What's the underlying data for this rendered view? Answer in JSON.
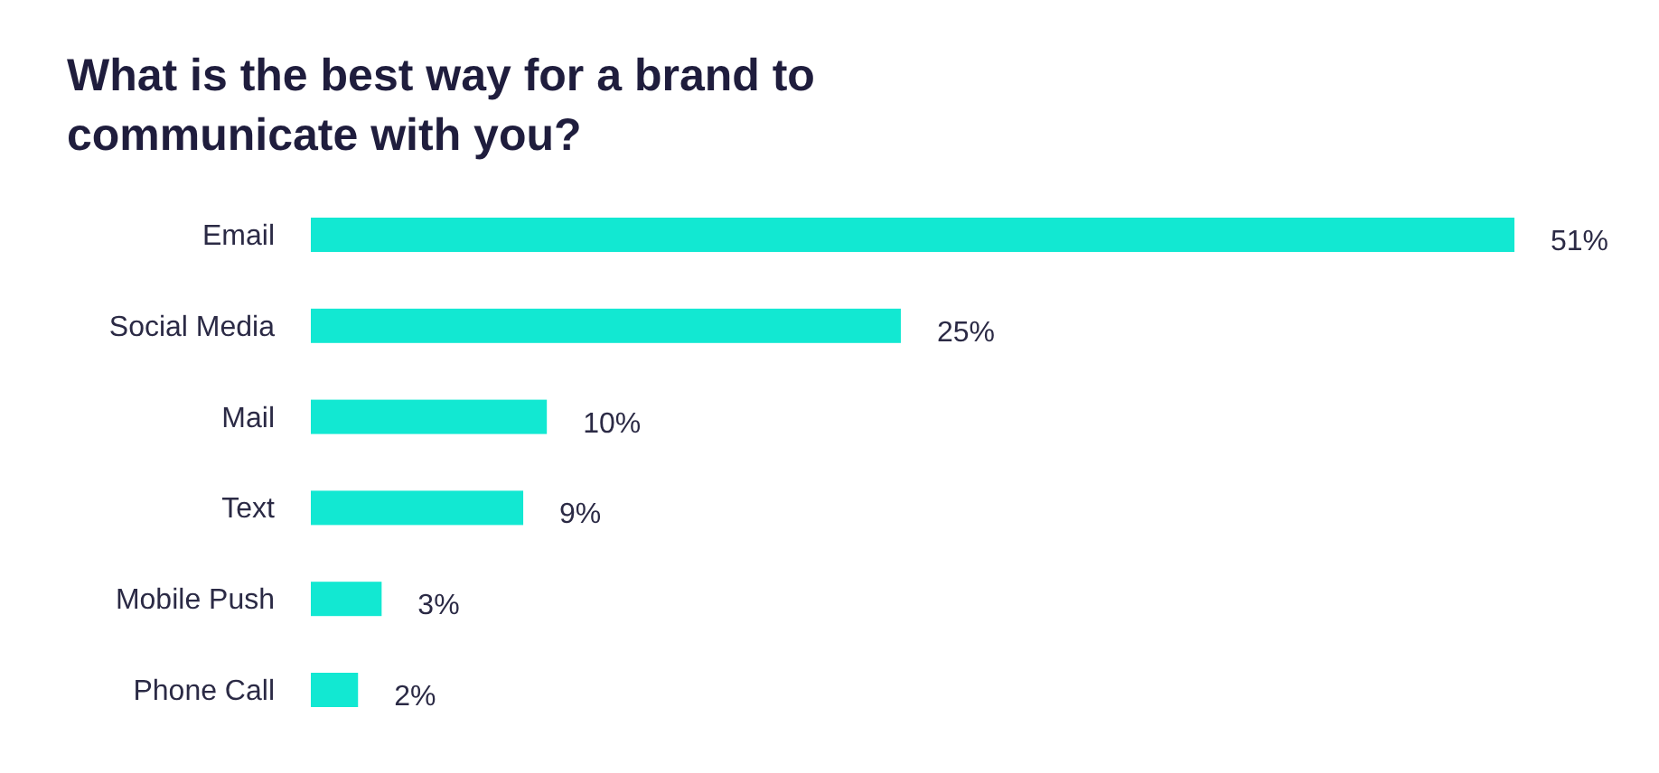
{
  "chart_data": {
    "type": "bar",
    "orientation": "horizontal",
    "title": "What is the best way for a brand to communicate with you?",
    "categories": [
      "Email",
      "Social Media",
      "Mail",
      "Text",
      "Mobile Push",
      "Phone Call"
    ],
    "values": [
      51,
      25,
      10,
      9,
      3,
      2
    ],
    "color": "#12e8d2",
    "value_labels": [
      "51%",
      "25%",
      "10%",
      "9%",
      "3%",
      "2%"
    ]
  }
}
